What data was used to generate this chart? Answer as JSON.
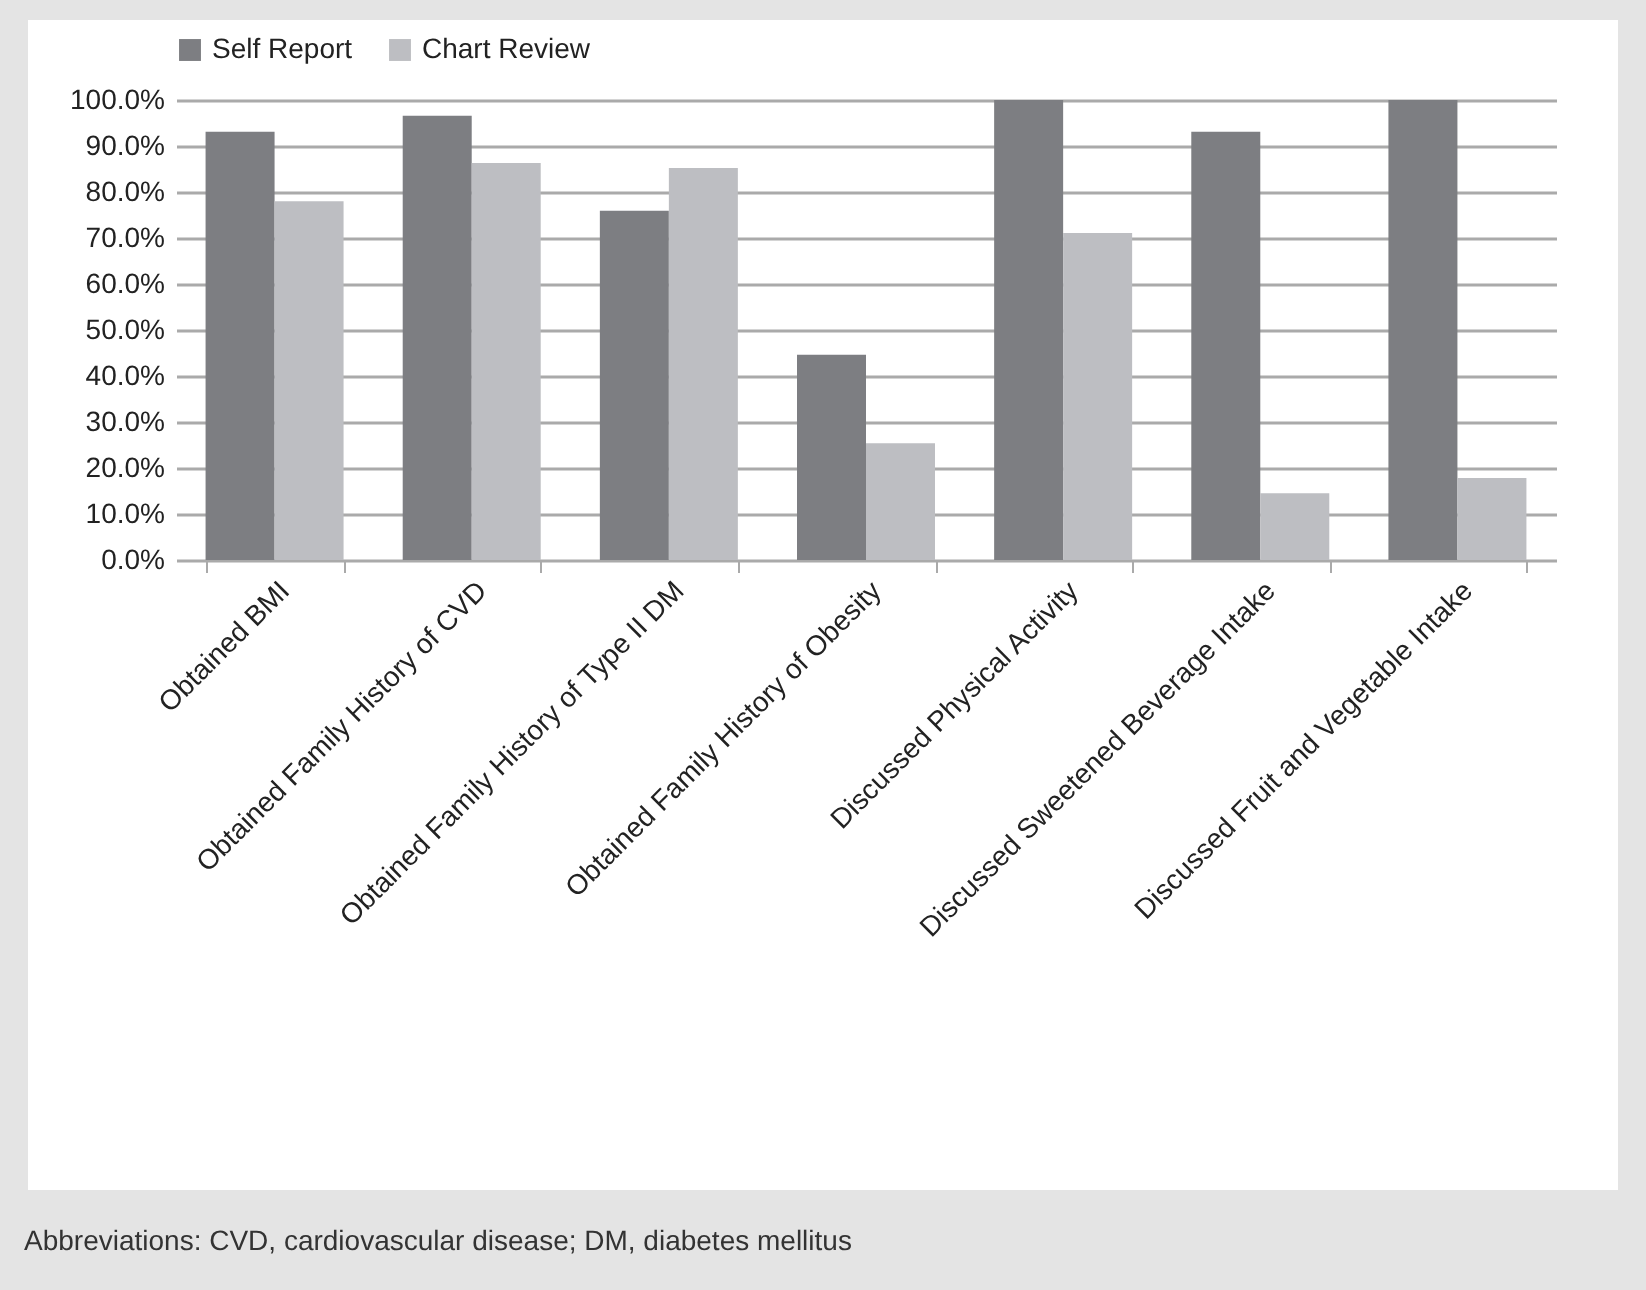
{
  "chart_data": {
    "type": "bar",
    "categories": [
      "Obtained BMI",
      "Obtained Family History of CVD",
      "Obtained Family History of Type II DM",
      "Obtained Family History of Obesity",
      "Discussed Physical Activity",
      "Discussed Sweetened Beverage Intake",
      "Discussed Fruit and Vegetable Intake"
    ],
    "series": [
      {
        "name": "Self Report",
        "color": "#7d7e82",
        "values": [
          93.1,
          96.6,
          75.9,
          44.6,
          100,
          93.1,
          100
        ]
      },
      {
        "name": "Chart Review",
        "color": "#bdbec2",
        "values": [
          78.0,
          86.3,
          85.2,
          25.4,
          71.1,
          14.5,
          17.8
        ]
      }
    ],
    "ylim": [
      0,
      100
    ],
    "yticks": [
      {
        "value": 0,
        "label": "0.0%"
      },
      {
        "value": 10,
        "label": "10.0%"
      },
      {
        "value": 20,
        "label": "20.0%"
      },
      {
        "value": 30,
        "label": "30.0%"
      },
      {
        "value": 40,
        "label": "40.0%"
      },
      {
        "value": 50,
        "label": "50.0%"
      },
      {
        "value": 60,
        "label": "60.0%"
      },
      {
        "value": 70,
        "label": "70.0%"
      },
      {
        "value": 80,
        "label": "80.0%"
      },
      {
        "value": 90,
        "label": "90.0%"
      },
      {
        "value": 100,
        "label": "100.0%"
      }
    ],
    "grid": "y",
    "legend": "top",
    "annotations": [
      "Abbreviations: CVD, cardiovascular disease; DM, diabetes mellitus"
    ]
  }
}
